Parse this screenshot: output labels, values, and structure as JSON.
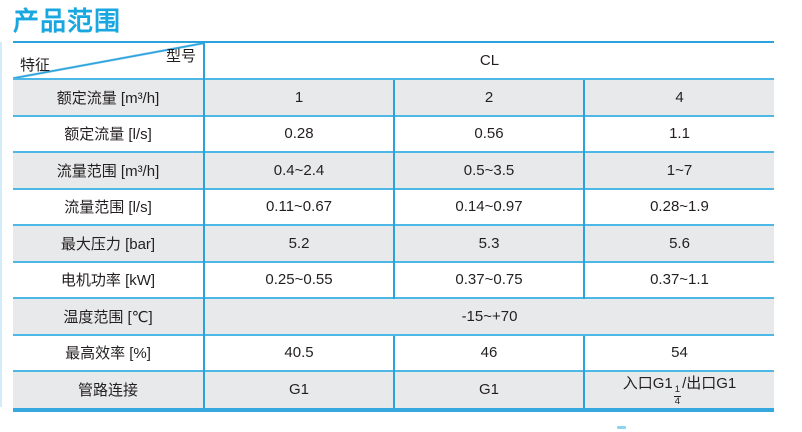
{
  "page": {
    "title": "产品范围"
  },
  "colors": {
    "title_blue": "#18a7e0",
    "grid_blue_horizontal": "#4db8e6",
    "grid_blue_vertical": "#2aa3dc",
    "row_gray": "#e8e9ea",
    "text_dark": "#231f20"
  },
  "table": {
    "corner": {
      "top_right_label": "型号",
      "bottom_left_label": "特征"
    },
    "model_header": "CL",
    "rows": [
      {
        "label": "额定流量 [m³/h]",
        "values": [
          "1",
          "2",
          "4"
        ]
      },
      {
        "label": "额定流量 [l/s]",
        "values": [
          "0.28",
          "0.56",
          "1.1"
        ]
      },
      {
        "label": "流量范围 [m³/h]",
        "values": [
          "0.4~2.4",
          "0.5~3.5",
          "1~7"
        ]
      },
      {
        "label": "流量范围 [l/s]",
        "values": [
          "0.11~0.67",
          "0.14~0.97",
          "0.28~1.9"
        ]
      },
      {
        "label": "最大压力 [bar]",
        "values": [
          "5.2",
          "5.3",
          "5.6"
        ]
      },
      {
        "label": "电机功率 [kW]",
        "values": [
          "0.25~0.55",
          "0.37~0.75",
          "0.37~1.1"
        ]
      },
      {
        "label": "温度范围 [℃]",
        "merged_value": "-15~+70"
      },
      {
        "label": "最高效率 [%]",
        "values": [
          "40.5",
          "46",
          "54"
        ]
      },
      {
        "label": "管路连接",
        "values": [
          "G1",
          "G1"
        ],
        "pipe_connection": {
          "prefix": "入口G1",
          "numerator": "1",
          "denominator": "4",
          "suffix": "/出口G1"
        }
      }
    ]
  }
}
